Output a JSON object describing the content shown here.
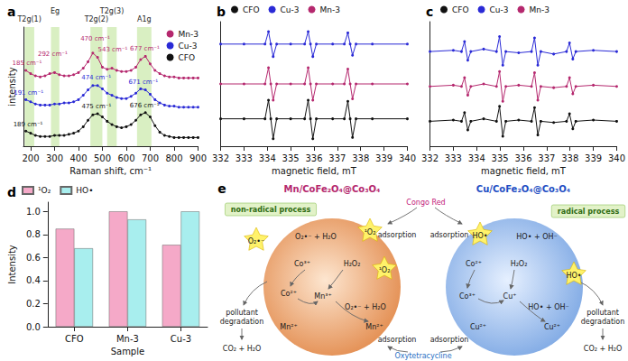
{
  "chart_data": [
    {
      "panel": "a",
      "type": "line",
      "x_label": "Raman shift, cm⁻¹",
      "y_label": "intensity",
      "xlim": [
        170,
        900
      ],
      "xticks": [
        200,
        300,
        400,
        500,
        600,
        700,
        800,
        900
      ],
      "ylim": [
        0,
        11
      ],
      "tick_labels": "x",
      "legend": "top-right",
      "marker": "circle",
      "x": [
        180,
        200,
        220,
        240,
        260,
        280,
        300,
        320,
        340,
        360,
        380,
        400,
        420,
        440,
        460,
        480,
        500,
        520,
        540,
        560,
        580,
        600,
        620,
        640,
        660,
        680,
        700,
        720,
        740,
        760,
        780,
        800,
        820,
        840,
        860,
        880,
        900
      ],
      "series": [
        {
          "name": "Mn-3",
          "color": "#b5286e",
          "values": [
            7.0,
            6.7,
            6.5,
            6.4,
            6.5,
            6.7,
            6.8,
            6.6,
            6.5,
            6.5,
            6.6,
            6.8,
            7.2,
            7.8,
            8.6,
            8.2,
            7.3,
            7.1,
            7.2,
            7.0,
            6.9,
            6.9,
            7.0,
            7.3,
            8.0,
            8.3,
            7.6,
            7.0,
            6.7,
            6.5,
            6.4,
            6.4,
            6.3,
            6.3,
            6.3,
            6.3,
            6.3
          ]
        },
        {
          "name": "Cu-3",
          "color": "#2a2ad6",
          "values": [
            4.3,
            4.1,
            3.9,
            3.8,
            3.8,
            3.8,
            3.9,
            3.9,
            4.0,
            4.0,
            4.1,
            4.3,
            4.7,
            5.2,
            5.6,
            5.6,
            5.3,
            4.9,
            4.7,
            4.5,
            4.4,
            4.4,
            4.6,
            4.9,
            5.3,
            5.2,
            4.8,
            4.3,
            4.0,
            3.8,
            3.7,
            3.7,
            3.6,
            3.6,
            3.6,
            3.6,
            3.6
          ]
        },
        {
          "name": "CFO",
          "color": "#111111",
          "values": [
            1.4,
            1.2,
            1.0,
            0.9,
            0.9,
            0.9,
            1.0,
            1.0,
            1.0,
            1.1,
            1.2,
            1.4,
            1.8,
            2.4,
            2.9,
            3.0,
            2.7,
            2.3,
            2.0,
            1.8,
            1.7,
            1.8,
            2.0,
            2.4,
            2.9,
            3.1,
            2.7,
            1.9,
            1.3,
            1.0,
            0.9,
            0.8,
            0.8,
            0.8,
            0.8,
            0.8,
            0.8
          ]
        }
      ],
      "bands": [
        {
          "label": "T2g(1)",
          "range": [
            175,
            215
          ]
        },
        {
          "label": "Eg",
          "range": [
            285,
            320
          ]
        },
        {
          "label": "T2g(2)",
          "range": [
            450,
            500
          ]
        },
        {
          "label": "T2g(3)",
          "range": [
            520,
            560
          ]
        },
        {
          "label": "A1g",
          "range": [
            645,
            705
          ]
        }
      ],
      "annotations": [
        {
          "series": "Mn-3",
          "x": 185,
          "text": "185 cm⁻¹"
        },
        {
          "series": "Mn-3",
          "x": 292,
          "text": "292 cm⁻¹"
        },
        {
          "series": "Mn-3",
          "x": 470,
          "text": "470 cm⁻¹"
        },
        {
          "series": "Mn-3",
          "x": 543,
          "text": "543 cm⁻¹"
        },
        {
          "series": "Mn-3",
          "x": 677,
          "text": "677 cm⁻¹"
        },
        {
          "series": "Cu-3",
          "x": 191,
          "text": "191 cm⁻¹"
        },
        {
          "series": "Cu-3",
          "x": 474,
          "text": "474 cm⁻¹"
        },
        {
          "series": "Cu-3",
          "x": 671,
          "text": "671 cm⁻¹"
        },
        {
          "series": "CFO",
          "x": 189,
          "text": "189 cm⁻¹"
        },
        {
          "series": "CFO",
          "x": 475,
          "text": "475 cm⁻¹"
        },
        {
          "series": "CFO",
          "x": 676,
          "text": "676 cm⁻¹"
        }
      ]
    },
    {
      "panel": "b",
      "type": "line",
      "x_label": "magnetic field, mT",
      "xlim": [
        332,
        340
      ],
      "xticks": [
        332,
        333,
        334,
        335,
        336,
        337,
        338,
        339,
        340
      ],
      "ylim": [
        0,
        10
      ],
      "tick_labels": "x",
      "legend": "top",
      "marker": "circle",
      "x": [
        332,
        333,
        333.9,
        334.05,
        334.15,
        334.25,
        334.4,
        335,
        335.6,
        335.75,
        335.85,
        335.95,
        336.1,
        336.8,
        337.3,
        337.45,
        337.55,
        337.65,
        337.8,
        338.5,
        340
      ],
      "series": [
        {
          "name": "CFO",
          "color": "#111111",
          "values": [
            2.2,
            2.2,
            2.2,
            3.7,
            2.2,
            0.6,
            2.2,
            2.2,
            2.2,
            3.7,
            2.2,
            0.6,
            2.2,
            2.2,
            2.2,
            3.6,
            2.2,
            0.7,
            2.2,
            2.2,
            2.2
          ]
        },
        {
          "name": "Cu-3",
          "color": "#2a2ad6",
          "values": [
            8.2,
            8.2,
            8.2,
            9.2,
            8.2,
            7.2,
            8.2,
            8.2,
            8.2,
            9.2,
            8.2,
            7.2,
            8.2,
            8.2,
            8.2,
            9.1,
            8.2,
            7.3,
            8.2,
            8.2,
            8.2
          ]
        },
        {
          "name": "Mn-3",
          "color": "#b5286e",
          "values": [
            5.0,
            5.0,
            5.0,
            6.3,
            5.0,
            3.7,
            5.0,
            5.0,
            5.0,
            6.3,
            5.0,
            3.7,
            5.0,
            5.0,
            5.0,
            6.2,
            5.0,
            3.8,
            5.0,
            5.0,
            5.0
          ]
        }
      ]
    },
    {
      "panel": "c",
      "type": "line",
      "x_label": "magnetic field, mT",
      "xlim": [
        332,
        340
      ],
      "xticks": [
        332,
        333,
        334,
        335,
        336,
        337,
        338,
        339,
        340
      ],
      "ylim": [
        0,
        10
      ],
      "tick_labels": "x",
      "legend": "top",
      "marker": "circle",
      "x": [
        332,
        333,
        333.35,
        333.48,
        333.62,
        333.75,
        334.3,
        334.85,
        334.98,
        335.12,
        335.25,
        335.8,
        336.35,
        336.48,
        336.62,
        336.75,
        337.3,
        337.85,
        337.98,
        338.12,
        338.25,
        339,
        340
      ],
      "series": [
        {
          "name": "CFO",
          "color": "#111111",
          "values": [
            2.0,
            2.1,
            2.0,
            2.7,
            1.3,
            2.0,
            2.2,
            2.0,
            3.2,
            0.8,
            2.0,
            2.1,
            2.0,
            3.1,
            0.9,
            2.0,
            1.9,
            2.0,
            2.6,
            1.4,
            2.0,
            2.1,
            2.0
          ]
        },
        {
          "name": "Cu-3",
          "color": "#2a2ad6",
          "values": [
            7.6,
            7.7,
            7.6,
            8.4,
            6.9,
            7.6,
            7.8,
            7.6,
            8.8,
            6.5,
            7.6,
            7.5,
            7.6,
            8.7,
            6.5,
            7.6,
            7.4,
            7.6,
            8.3,
            7.0,
            7.6,
            7.7,
            7.6
          ]
        },
        {
          "name": "Mn-3",
          "color": "#b5286e",
          "values": [
            4.8,
            4.9,
            4.8,
            5.5,
            4.1,
            4.8,
            5.0,
            4.8,
            6.0,
            3.6,
            4.8,
            4.9,
            4.8,
            5.9,
            3.7,
            4.8,
            4.7,
            4.8,
            5.5,
            4.2,
            4.8,
            4.9,
            4.8
          ]
        }
      ]
    },
    {
      "panel": "d",
      "type": "bar",
      "x_label": "Sample",
      "y_label": "Intensity",
      "categories": [
        "CFO",
        "Mn-3",
        "Cu-3"
      ],
      "ylim": [
        0,
        1.08
      ],
      "yticks": [
        {
          "value": 0,
          "label": "0.0"
        },
        {
          "value": 0.2,
          "label": "0.2"
        },
        {
          "value": 0.4,
          "label": "0.4"
        },
        {
          "value": 0.6,
          "label": "0.6"
        },
        {
          "value": 0.8,
          "label": "0.8"
        },
        {
          "value": 1,
          "label": "1.0"
        }
      ],
      "legend": "top",
      "series": [
        {
          "name": "¹O₂",
          "color": "#f5a9c8",
          "values": [
            0.85,
            1.0,
            0.71
          ]
        },
        {
          "name": "HO•",
          "color": "#a8eeee",
          "values": [
            0.68,
            0.93,
            1.0
          ]
        }
      ]
    }
  ],
  "diagram": {
    "panel": "e",
    "left": {
      "title": "Mn/CoFe₂O₄@Co₃O₄",
      "color": "#b5286e",
      "process": "non-radical process",
      "species": [
        {
          "text": "O₂•⁻",
          "kind": "star"
        },
        {
          "text": "O₂•⁻ + H₂O"
        },
        {
          "text": "¹O₂",
          "kind": "star"
        },
        {
          "text": "Co³⁺"
        },
        {
          "text": "Co²⁺"
        },
        {
          "text": "H₂O₂"
        },
        {
          "text": "Mn³⁺"
        },
        {
          "text": "¹O₂",
          "kind": "star"
        },
        {
          "text": "O₂•⁻ + H₂O"
        },
        {
          "text": "Mn²⁺"
        },
        {
          "text": "Mn²⁺"
        }
      ]
    },
    "right": {
      "title": "Cu/CoFe₂O₄@Co₃O₄",
      "color": "#1f4fc4",
      "process": "radical process",
      "species": [
        {
          "text": "HO•",
          "kind": "star"
        },
        {
          "text": "HO• + OH⁻"
        },
        {
          "text": "Co²⁺"
        },
        {
          "text": "H₂O₂"
        },
        {
          "text": "Co³⁺"
        },
        {
          "text": "Cu⁺"
        },
        {
          "text": "HO•",
          "kind": "star"
        },
        {
          "text": "HO• + OH⁻"
        },
        {
          "text": "Cu²⁺"
        },
        {
          "text": "Cu²⁺"
        }
      ]
    },
    "pollutants": [
      {
        "text": "Congo Red",
        "color": "#c2187a"
      },
      {
        "text": "Oxytetracycline",
        "color": "#1f6fc4"
      }
    ],
    "adsorption": [
      "adsorption",
      "adsorption",
      "adsorption",
      "adsorption"
    ],
    "degradation": [
      "pollutant degradation",
      "pollutant degradation"
    ],
    "products": [
      "CO₂ + H₂O",
      "CO₂ + H₂O"
    ]
  }
}
